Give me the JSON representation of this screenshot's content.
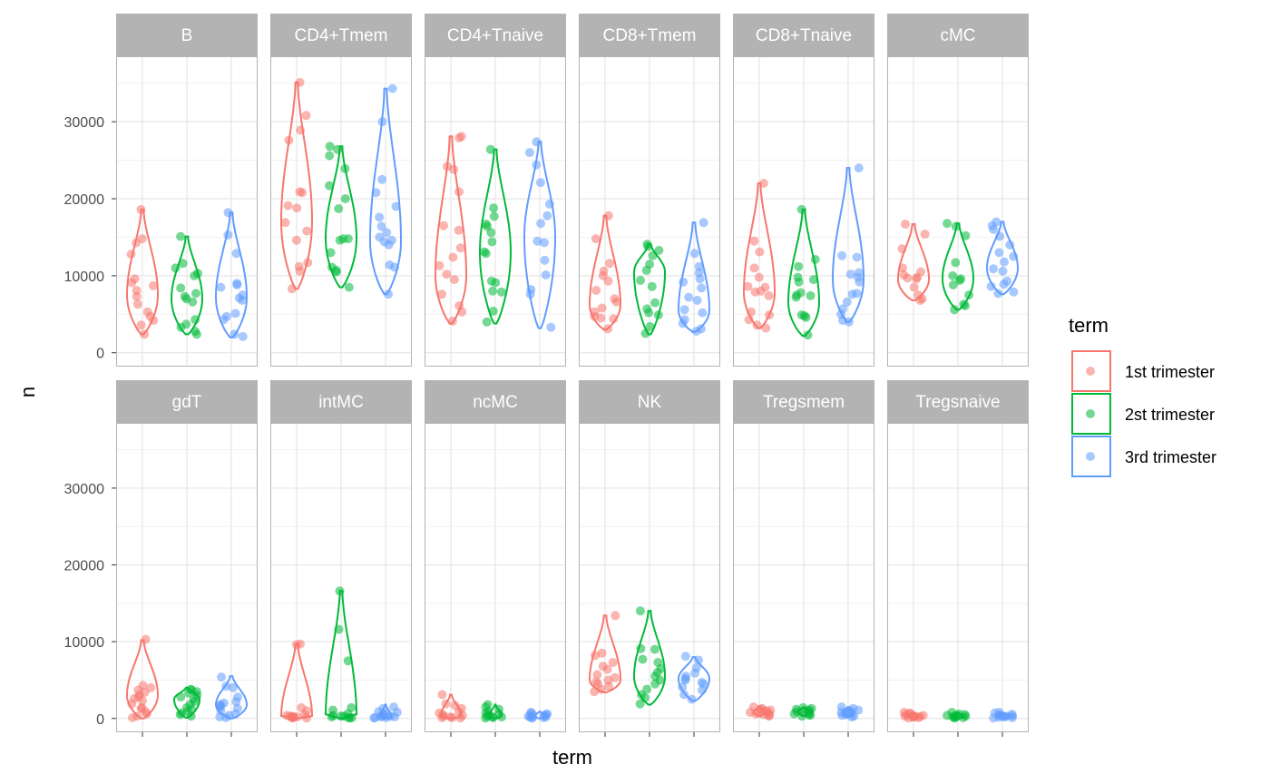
{
  "chart_data": {
    "type": "violin",
    "xlabel": "term",
    "ylabel": "n",
    "ylim": [
      -1800,
      38500
    ],
    "yticks": [
      "0",
      "10000",
      "20000",
      "30000"
    ],
    "grid": true,
    "legend": {
      "title": "term",
      "placement": "right",
      "entries": [
        {
          "name": "1st trimester",
          "color": "#F8766D"
        },
        {
          "name": "2st trimester",
          "color": "#00BA38"
        },
        {
          "name": "3rd trimester",
          "color": "#619CFF"
        }
      ]
    },
    "panels": [
      {
        "label": "B",
        "groups": [
          {
            "min": 2400,
            "max": 18600,
            "mode": 7500,
            "points": [
              18600,
              14800,
              14300,
              12800,
              9600,
              9100,
              8700,
              8100,
              7300,
              6300,
              5300,
              4700,
              4200,
              3600,
              2400
            ]
          },
          {
            "min": 2400,
            "max": 15100,
            "mode": 7000,
            "points": [
              15100,
              11600,
              11000,
              10300,
              10000,
              8400,
              7700,
              7300,
              7000,
              6600,
              4300,
              3700,
              3300,
              2800,
              2400
            ]
          },
          {
            "min": 2000,
            "max": 18200,
            "mode": 7200,
            "points": [
              18200,
              15300,
              12900,
              9000,
              8800,
              8500,
              7500,
              7100,
              6800,
              5100,
              4700,
              4300,
              2400,
              2100
            ]
          }
        ]
      },
      {
        "label": "CD4+Tmem",
        "groups": [
          {
            "min": 8300,
            "max": 35100,
            "mode": 17000,
            "points": [
              35100,
              30800,
              28900,
              27600,
              20800,
              20900,
              19100,
              18800,
              16900,
              15800,
              14600,
              11700,
              11200,
              10600,
              8300
            ]
          },
          {
            "min": 8500,
            "max": 26800,
            "mode": 14800,
            "points": [
              26800,
              26400,
              25600,
              23900,
              21700,
              20000,
              18700,
              14800,
              14800,
              14600,
              13000,
              11100,
              10700,
              10500,
              8500
            ]
          },
          {
            "min": 7600,
            "max": 34300,
            "mode": 14500,
            "points": [
              34300,
              30000,
              22500,
              20800,
              19000,
              17600,
              16400,
              15600,
              15000,
              14600,
              14400,
              14000,
              11400,
              11100,
              7600
            ]
          }
        ]
      },
      {
        "label": "CD4+Tnaive",
        "groups": [
          {
            "min": 3800,
            "max": 28100,
            "mode": 10000,
            "points": [
              28100,
              27900,
              24200,
              23800,
              20900,
              16500,
              15900,
              13600,
              12400,
              11300,
              10200,
              9500,
              7600,
              6100,
              5300,
              4100
            ]
          },
          {
            "min": 3800,
            "max": 26400,
            "mode": 13000,
            "points": [
              26400,
              18800,
              17700,
              16700,
              16400,
              15600,
              14400,
              13100,
              12900,
              9300,
              9100,
              8000,
              7900,
              5400,
              4000
            ]
          },
          {
            "min": 3200,
            "max": 27400,
            "mode": 15000,
            "points": [
              27400,
              26000,
              24400,
              22100,
              19300,
              17800,
              16800,
              14500,
              14300,
              12000,
              10100,
              8200,
              7600,
              3300
            ]
          }
        ]
      },
      {
        "label": "CD8+Tmem",
        "groups": [
          {
            "min": 3000,
            "max": 17800,
            "mode": 6200,
            "points": [
              17800,
              14800,
              11600,
              10600,
              10000,
              9300,
              8100,
              7000,
              6600,
              5800,
              5300,
              4700,
              4500,
              4400,
              3100
            ]
          },
          {
            "min": 2400,
            "max": 14100,
            "mode": 10500,
            "points": [
              14100,
              13800,
              13300,
              12600,
              11500,
              10700,
              9400,
              8600,
              6500,
              5700,
              5200,
              4900,
              3400,
              2500
            ]
          },
          {
            "min": 2700,
            "max": 16900,
            "mode": 5500,
            "points": [
              16900,
              12900,
              11200,
              10400,
              9600,
              9200,
              8400,
              7200,
              6800,
              5600,
              5200,
              4300,
              3800,
              3100,
              2800
            ]
          }
        ]
      },
      {
        "label": "CD8+Tnaive",
        "groups": [
          {
            "min": 3200,
            "max": 22000,
            "mode": 7800,
            "points": [
              22000,
              14500,
              13100,
              11000,
              9800,
              8600,
              8500,
              8000,
              7900,
              7400,
              5300,
              4900,
              4300,
              3600,
              3200
            ]
          },
          {
            "min": 2200,
            "max": 18600,
            "mode": 6500,
            "points": [
              18600,
              12100,
              11200,
              9800,
              9500,
              9200,
              7800,
              7500,
              7400,
              7200,
              4900,
              4800,
              4600,
              2300
            ]
          },
          {
            "min": 4000,
            "max": 24000,
            "mode": 9500,
            "points": [
              24000,
              12600,
              12400,
              10400,
              10200,
              9800,
              9200,
              7700,
              7600,
              6600,
              5700,
              5000,
              4200,
              4000
            ]
          }
        ]
      },
      {
        "label": "cMC",
        "groups": [
          {
            "min": 6800,
            "max": 16700,
            "mode": 9500,
            "points": [
              16700,
              15400,
              13500,
              11000,
              10500,
              10100,
              9800,
              9700,
              9600,
              8500,
              7500,
              7000,
              6800
            ]
          },
          {
            "min": 5600,
            "max": 16800,
            "mode": 9600,
            "points": [
              16800,
              16400,
              15200,
              11700,
              10000,
              9600,
              9400,
              8800,
              7500,
              6300,
              6100,
              5600
            ]
          },
          {
            "min": 7600,
            "max": 17000,
            "mode": 11000,
            "points": [
              17000,
              16500,
              16000,
              15100,
              14000,
              13000,
              12500,
              11800,
              10900,
              10600,
              9300,
              8900,
              8600,
              7900,
              7700
            ]
          }
        ]
      },
      {
        "label": "gdT",
        "groups": [
          {
            "min": 0,
            "max": 10200,
            "mode": 3000,
            "points": [
              10300,
              4300,
              4000,
              3700,
              3400,
              3100,
              2800,
              2600,
              2300,
              1900,
              1400,
              1300,
              900,
              600,
              300,
              100
            ]
          },
          {
            "min": 100,
            "max": 4000,
            "mode": 2500,
            "points": [
              3800,
              3700,
              3500,
              3300,
              3000,
              2800,
              2500,
              2200,
              1800,
              1400,
              1200,
              900,
              700,
              500,
              300
            ]
          },
          {
            "min": 0,
            "max": 5500,
            "mode": 1800,
            "points": [
              5400,
              4200,
              4000,
              2800,
              2200,
              2000,
              1800,
              1700,
              1500,
              1300,
              1000,
              600,
              400,
              200,
              100
            ]
          }
        ]
      },
      {
        "label": "intMC",
        "groups": [
          {
            "min": 0,
            "max": 9700,
            "mode": 200,
            "points": [
              9700,
              9600,
              1400,
              1000,
              500,
              400,
              300,
              300,
              200,
              200,
              100,
              100,
              100,
              50
            ]
          },
          {
            "min": 0,
            "max": 16600,
            "mode": 200,
            "points": [
              16600,
              11600,
              7500,
              1400,
              1100,
              600,
              400,
              300,
              300,
              200,
              100,
              100,
              50
            ]
          },
          {
            "min": 0,
            "max": 1800,
            "mode": 200,
            "points": [
              1500,
              1300,
              900,
              800,
              600,
              500,
              400,
              300,
              300,
              200,
              200,
              100,
              100,
              50
            ]
          }
        ]
      },
      {
        "label": "ncMC",
        "groups": [
          {
            "min": 0,
            "max": 3100,
            "mode": 300,
            "points": [
              3100,
              1900,
              1700,
              1300,
              900,
              700,
              500,
              400,
              300,
              200,
              100,
              100,
              50
            ]
          },
          {
            "min": 0,
            "max": 1800,
            "mode": 400,
            "points": [
              1800,
              1500,
              1200,
              900,
              700,
              600,
              400,
              300,
              200,
              200,
              100,
              50
            ]
          },
          {
            "min": 0,
            "max": 900,
            "mode": 300,
            "points": [
              800,
              700,
              600,
              500,
              400,
              400,
              300,
              200,
              200,
              100,
              100,
              50
            ]
          }
        ]
      },
      {
        "label": "NK",
        "groups": [
          {
            "min": 3400,
            "max": 13400,
            "mode": 5000,
            "points": [
              13400,
              8500,
              8200,
              7300,
              6800,
              6400,
              5700,
              5300,
              5000,
              4800,
              4500,
              4200,
              3800,
              3500
            ]
          },
          {
            "min": 1800,
            "max": 14000,
            "mode": 5500,
            "points": [
              14000,
              9100,
              9000,
              7700,
              7300,
              6500,
              6000,
              5500,
              5000,
              4500,
              3800,
              3100,
              2700,
              1900
            ]
          },
          {
            "min": 2300,
            "max": 8000,
            "mode": 5200,
            "points": [
              8100,
              7600,
              6600,
              5900,
              5500,
              5200,
              5000,
              4700,
              4500,
              4100,
              3700,
              3100,
              2500
            ]
          }
        ]
      },
      {
        "label": "Tregsmem",
        "groups": [
          {
            "min": 300,
            "max": 1600,
            "mode": 800,
            "points": [
              1500,
              1300,
              1200,
              1100,
              1000,
              900,
              800,
              700,
              600,
              600,
              500,
              400,
              300
            ]
          },
          {
            "min": 300,
            "max": 1500,
            "mode": 900,
            "points": [
              1400,
              1300,
              1200,
              1100,
              1000,
              900,
              800,
              700,
              600,
              500,
              400,
              300
            ]
          },
          {
            "min": 200,
            "max": 1500,
            "mode": 700,
            "points": [
              1500,
              1300,
              1100,
              1000,
              900,
              800,
              700,
              600,
              500,
              400,
              300,
              200
            ]
          }
        ]
      },
      {
        "label": "Tregsnaive",
        "groups": [
          {
            "min": 0,
            "max": 800,
            "mode": 250,
            "points": [
              800,
              700,
              600,
              500,
              400,
              350,
              300,
              250,
              200,
              150,
              100,
              50
            ]
          },
          {
            "min": 0,
            "max": 800,
            "mode": 200,
            "points": [
              800,
              600,
              500,
              400,
              350,
              300,
              250,
              200,
              150,
              100,
              50
            ]
          },
          {
            "min": 0,
            "max": 800,
            "mode": 250,
            "points": [
              800,
              700,
              550,
              450,
              400,
              350,
              300,
              250,
              200,
              150,
              100,
              50
            ]
          }
        ]
      }
    ]
  }
}
